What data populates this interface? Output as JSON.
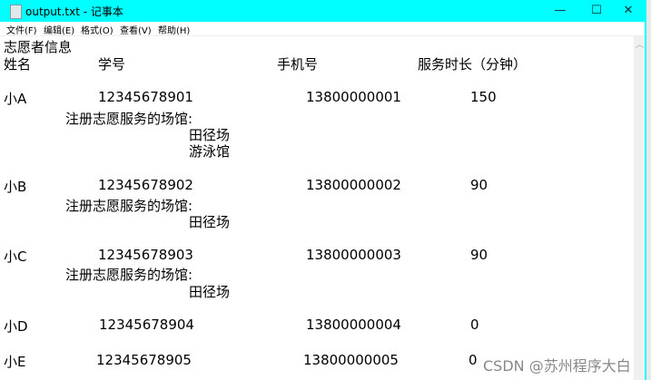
{
  "window": {
    "title": "output.txt - 记事本",
    "accent": "#00ffff"
  },
  "controls": {
    "minimize": "—",
    "maximize": "☐",
    "close": "✕"
  },
  "menu": [
    "文件(F)",
    "编辑(E)",
    "格式(O)",
    "查看(V)",
    "帮助(H)"
  ],
  "content": {
    "heading": "志愿者信息",
    "columns": [
      "姓名",
      "学号",
      "手机号",
      "服务时长（分钟）"
    ],
    "venue_label": "注册志愿服务的场馆:",
    "records": [
      {
        "name": "小A",
        "id": "12345678901",
        "phone": "13800000001",
        "minutes": "150",
        "venues": [
          "田径场",
          "游泳馆"
        ]
      },
      {
        "name": "小B",
        "id": "12345678902",
        "phone": "13800000002",
        "minutes": "90",
        "venues": [
          "田径场"
        ]
      },
      {
        "name": "小C",
        "id": "12345678903",
        "phone": "13800000003",
        "minutes": "90",
        "venues": [
          "田径场"
        ]
      },
      {
        "name": "小D",
        "id": "12345678904",
        "phone": "13800000004",
        "minutes": "0",
        "venues": []
      },
      {
        "name": "小E",
        "id": "12345678905",
        "phone": "13800000005",
        "minutes": "0",
        "venues": []
      }
    ]
  },
  "watermark": "CSDN @苏州程序大白"
}
